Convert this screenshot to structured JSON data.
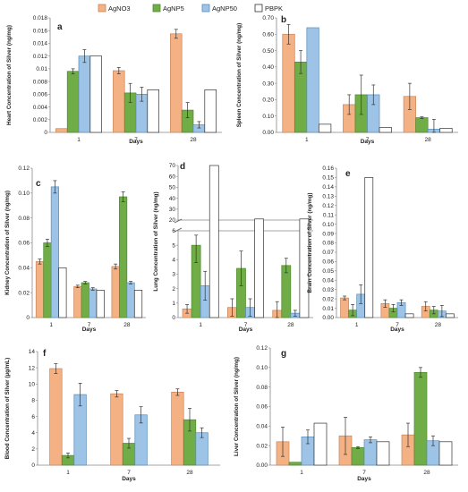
{
  "legend": {
    "items": [
      {
        "label": "AgNO3",
        "color": "#F4B183",
        "stroke": "#C9855A"
      },
      {
        "label": "AgNP5",
        "color": "#70AD47",
        "stroke": "#4E8A2F"
      },
      {
        "label": "AgNP50",
        "color": "#9DC3E6",
        "stroke": "#5B8DB8"
      },
      {
        "label": "PBPK",
        "color": "#FFFFFF",
        "stroke": "#333333"
      }
    ]
  },
  "chart_data": [
    {
      "panel": "a",
      "type": "bar",
      "categories": [
        "1",
        "7",
        "28"
      ],
      "xlabel": "Days",
      "ylabel": "Heart Concentration of Silver (ng/mg)",
      "ylim": [
        0,
        0.018
      ],
      "ticks": [
        "0",
        "0.002",
        "0.004",
        "0.006",
        "0.008",
        "0.01",
        "0.012",
        "0.014",
        "0.016",
        "0.018"
      ],
      "series": [
        {
          "name": "AgNO3",
          "values": [
            0.0006,
            0.0097,
            0.0155
          ],
          "errors": [
            0,
            0.0005,
            0.0007
          ]
        },
        {
          "name": "AgNP5",
          "values": [
            0.0096,
            0.0062,
            0.0035
          ],
          "errors": [
            0.0004,
            0.0015,
            0.0012
          ]
        },
        {
          "name": "AgNP50",
          "values": [
            0.012,
            0.006,
            0.0012
          ],
          "errors": [
            0.001,
            0.0011,
            0.0005
          ]
        },
        {
          "name": "PBPK",
          "values": [
            0.012,
            0.0067,
            0.0067
          ],
          "errors": [
            0,
            0,
            0
          ]
        }
      ]
    },
    {
      "panel": "b",
      "type": "bar",
      "categories": [
        "1",
        "7",
        "28"
      ],
      "xlabel": "Days",
      "ylabel": "Spleen Concentration of Silver (ng/mg)",
      "ylim": [
        0,
        0.7
      ],
      "ticks": [
        "0.00",
        "0.10",
        "0.20",
        "0.30",
        "0.40",
        "0.50",
        "0.60",
        "0.70"
      ],
      "series": [
        {
          "name": "AgNO3",
          "values": [
            0.6,
            0.17,
            0.22
          ],
          "errors": [
            0.06,
            0.06,
            0.08
          ]
        },
        {
          "name": "AgNP5",
          "values": [
            0.43,
            0.23,
            0.09
          ],
          "errors": [
            0.07,
            0.12,
            0.005
          ]
        },
        {
          "name": "AgNP50",
          "values": [
            0.64,
            0.23,
            0.02
          ],
          "errors": [
            0,
            0.06,
            0.06
          ]
        },
        {
          "name": "PBPK",
          "values": [
            0.05,
            0.03,
            0.025
          ],
          "errors": [
            0,
            0,
            0
          ]
        }
      ]
    },
    {
      "panel": "c",
      "type": "bar",
      "categories": [
        "1",
        "7",
        "28"
      ],
      "xlabel": "Days",
      "ylabel": "Kidney Concentration of Silver (ng/mg)",
      "ylim": [
        0,
        0.12
      ],
      "ticks": [
        "0",
        "0.02",
        "0.04",
        "0.06",
        "0.08",
        "0.10",
        "0.12"
      ],
      "series": [
        {
          "name": "AgNO3",
          "values": [
            0.045,
            0.025,
            0.041
          ],
          "errors": [
            0.002,
            0.001,
            0.002
          ]
        },
        {
          "name": "AgNP5",
          "values": [
            0.06,
            0.028,
            0.097
          ],
          "errors": [
            0.003,
            0.001,
            0.004
          ]
        },
        {
          "name": "AgNP50",
          "values": [
            0.105,
            0.023,
            0.028
          ],
          "errors": [
            0.005,
            0.001,
            0.001
          ]
        },
        {
          "name": "PBPK",
          "values": [
            0.04,
            0.022,
            0.022
          ],
          "errors": [
            0,
            0,
            0
          ]
        }
      ]
    },
    {
      "panel": "d",
      "type": "bar",
      "categories": [
        "1",
        "7",
        "28"
      ],
      "xlabel": "Days",
      "ylabel": "Lung Concentration of Silver (ng/mg)",
      "ylim": [
        0,
        6
      ],
      "ylim_upper": [
        20,
        70
      ],
      "ticks": [
        "0",
        "1",
        "2",
        "3",
        "4",
        "5",
        "6"
      ],
      "ticks_upper": [
        "20",
        "30",
        "40",
        "50",
        "60",
        "70"
      ],
      "series": [
        {
          "name": "AgNO3",
          "values": [
            0.6,
            0.7,
            0.5
          ],
          "errors": [
            0.3,
            0.6,
            0.6
          ]
        },
        {
          "name": "AgNP5",
          "values": [
            5.0,
            3.4,
            3.6
          ],
          "errors": [
            1.2,
            1.2,
            0.5
          ]
        },
        {
          "name": "AgNP50",
          "values": [
            2.2,
            0.7,
            0.3
          ],
          "errors": [
            1.0,
            0.6,
            0.2
          ]
        },
        {
          "name": "PBPK",
          "values": [
            70,
            21,
            21
          ],
          "errors": [
            0,
            0,
            0
          ]
        }
      ]
    },
    {
      "panel": "e",
      "type": "bar",
      "categories": [
        "1",
        "7",
        "28"
      ],
      "xlabel": "Days",
      "ylabel": "Brain Concentration of Silver (ng/mg)",
      "ylim": [
        0,
        0.16
      ],
      "ticks": [
        "0.00",
        "0.01",
        "0.02",
        "0.03",
        "0.04",
        "0.05",
        "0.06",
        "0.07",
        "0.08",
        "0.09",
        "0.10",
        "0.11",
        "0.12",
        "0.13",
        "0.14",
        "0.15",
        "0.16"
      ],
      "series": [
        {
          "name": "AgNO3",
          "values": [
            0.021,
            0.015,
            0.012
          ],
          "errors": [
            0.002,
            0.004,
            0.005
          ]
        },
        {
          "name": "AgNP5",
          "values": [
            0.008,
            0.01,
            0.008
          ],
          "errors": [
            0.006,
            0.004,
            0.004
          ]
        },
        {
          "name": "AgNP50",
          "values": [
            0.025,
            0.016,
            0.007
          ],
          "errors": [
            0.01,
            0.003,
            0.006
          ]
        },
        {
          "name": "PBPK",
          "values": [
            0.15,
            0.004,
            0.004
          ],
          "errors": [
            0,
            0,
            0
          ]
        }
      ]
    },
    {
      "panel": "f",
      "type": "bar",
      "categories": [
        "1",
        "7",
        "28"
      ],
      "xlabel": "Days",
      "ylabel": "Blood Concentration of Silver (µg/mL)",
      "ylim": [
        0,
        14
      ],
      "ticks": [
        "0",
        "2",
        "4",
        "6",
        "8",
        "10",
        "12",
        "14"
      ],
      "series": [
        {
          "name": "AgNO3",
          "values": [
            11.9,
            8.8,
            9.0
          ],
          "errors": [
            0.6,
            0.4,
            0.4
          ]
        },
        {
          "name": "AgNP5",
          "values": [
            1.2,
            2.7,
            5.6
          ],
          "errors": [
            0.3,
            0.6,
            1.4
          ]
        },
        {
          "name": "AgNP50",
          "values": [
            8.7,
            6.2,
            4.0
          ],
          "errors": [
            1.4,
            1.0,
            0.6
          ]
        }
      ]
    },
    {
      "panel": "g",
      "type": "bar",
      "categories": [
        "1",
        "7",
        "28"
      ],
      "xlabel": "Days",
      "ylabel": "Liver Concentration of Silver (ng/mg)",
      "ylim": [
        0,
        0.12
      ],
      "ticks": [
        "0.00",
        "0.02",
        "0.04",
        "0.06",
        "0.08",
        "0.10",
        "0.12"
      ],
      "series": [
        {
          "name": "AgNO3",
          "values": [
            0.024,
            0.03,
            0.031
          ],
          "errors": [
            0.015,
            0.019,
            0.012
          ]
        },
        {
          "name": "AgNP5",
          "values": [
            0.003,
            0.018,
            0.095
          ],
          "errors": [
            0,
            0.001,
            0.005
          ]
        },
        {
          "name": "AgNP50",
          "values": [
            0.029,
            0.026,
            0.025
          ],
          "errors": [
            0.007,
            0.003,
            0.005
          ]
        },
        {
          "name": "PBPK",
          "values": [
            0.043,
            0.024,
            0.024
          ],
          "errors": [
            0,
            0,
            0
          ]
        }
      ]
    }
  ]
}
